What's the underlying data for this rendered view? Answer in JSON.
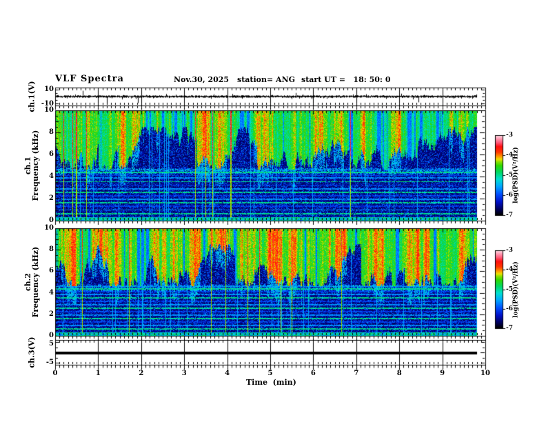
{
  "figure": {
    "title": "VLF Spectra",
    "date": "Nov.30, 2025",
    "station_label": "station= ANG",
    "start_ut_label": "start UT =   18: 50: 0"
  },
  "x_axis": {
    "label": "Time  (min)",
    "min": 0,
    "max": 10,
    "tick_values": [
      0,
      1,
      2,
      3,
      4,
      5,
      6,
      7,
      8,
      9,
      10
    ],
    "minor_tick_step_min": 0.1
  },
  "panels": {
    "ch1_wave": {
      "ylabel": "ch.1(V)",
      "ytick_top": "10",
      "ytick_bottom": "-10",
      "ymin": -10,
      "ymax": 10
    },
    "ch1_spec": {
      "ylabel_channel": "ch.1",
      "ylabel_axis": "Frequency (kHz)",
      "ytick_values": [
        0,
        2,
        4,
        6,
        8,
        10
      ],
      "ymin": 0,
      "ymax": 10
    },
    "ch2_spec": {
      "ylabel_channel": "ch.2",
      "ylabel_axis": "Frequency (kHz)",
      "ytick_values": [
        0,
        2,
        4,
        6,
        8,
        10
      ],
      "ymin": 0,
      "ymax": 10
    },
    "ch3_wave": {
      "ylabel": "ch.3(V)",
      "ytick_top": "5",
      "ytick_bottom": "-5",
      "ymin": -5,
      "ymax": 5
    }
  },
  "colorbar": {
    "label": "log(PSD)(V²/Hz)",
    "tick_labels": [
      "-3",
      "-4",
      "-5",
      "-6",
      "-7"
    ],
    "vmax": -3,
    "vmin": -7,
    "stops": [
      [
        0.0,
        "#000000"
      ],
      [
        0.06,
        "#000050"
      ],
      [
        0.16,
        "#0010c8"
      ],
      [
        0.26,
        "#0050ff"
      ],
      [
        0.36,
        "#00a8ff"
      ],
      [
        0.45,
        "#00e0d0"
      ],
      [
        0.54,
        "#00d860"
      ],
      [
        0.62,
        "#30d800"
      ],
      [
        0.67,
        "#90e000"
      ],
      [
        0.7,
        "#f0e000"
      ],
      [
        0.74,
        "#ff9000"
      ],
      [
        0.79,
        "#ff3800"
      ],
      [
        0.86,
        "#ff1010"
      ],
      [
        0.91,
        "#ff5878"
      ],
      [
        0.96,
        "#ff9cb4"
      ],
      [
        1.0,
        "#ffdce4"
      ]
    ]
  },
  "chart_data": [
    {
      "type": "line",
      "name": "ch.1 waveform",
      "xlim": [
        0,
        10
      ],
      "ylim": [
        -10,
        10
      ],
      "x_data_end_min": 9.8,
      "baseline_v": 0,
      "noise_amp_v": 1.5,
      "spikes": [
        {
          "t_min": 0.64,
          "v": 8
        },
        {
          "t_min": 1.2,
          "v": -10
        },
        {
          "t_min": 1.55,
          "v": -4
        },
        {
          "t_min": 1.92,
          "v": -9
        },
        {
          "t_min": 3.0,
          "v": 3
        },
        {
          "t_min": 4.35,
          "v": -3
        },
        {
          "t_min": 5.6,
          "v": 5
        },
        {
          "t_min": 8.05,
          "v": 4
        },
        {
          "t_min": 8.45,
          "v": -8
        },
        {
          "t_min": 9.7,
          "v": -3
        }
      ],
      "seed": 424242
    },
    {
      "type": "heatmap",
      "name": "ch.1 spectrogram",
      "xlim": [
        0,
        10
      ],
      "ylim": [
        0,
        10
      ],
      "zlim": [
        -7,
        -3
      ],
      "x_data_end_min": 9.8,
      "broadband_region_khz": [
        5,
        10
      ],
      "broadband_level_db": -4.72,
      "noise_floor_db": -6.8,
      "bottom_band_khz": [
        0,
        0.3
      ],
      "mid_band_khz": [
        4.2,
        4.78
      ],
      "line_freqs_khz": [
        0.62,
        0.95,
        1.28,
        1.6,
        1.93,
        2.26,
        2.58,
        2.9,
        3.22,
        3.55,
        3.88,
        4.12,
        4.38,
        4.62
      ],
      "line_levels_db": [
        -5.0,
        -5.65,
        -6.1
      ],
      "yellow_bias": 0,
      "seed": 12345
    },
    {
      "type": "heatmap",
      "name": "ch.2 spectrogram",
      "xlim": [
        0,
        10
      ],
      "ylim": [
        0,
        10
      ],
      "zlim": [
        -7,
        -3
      ],
      "x_data_end_min": 9.8,
      "broadband_region_khz": [
        5,
        10
      ],
      "broadband_level_db": -4.6,
      "noise_floor_db": -6.8,
      "bottom_band_khz": [
        0,
        0.3
      ],
      "mid_band_khz": [
        4.2,
        4.78
      ],
      "line_freqs_khz": [
        0.62,
        0.95,
        1.28,
        1.6,
        1.93,
        2.26,
        2.58,
        2.9,
        3.22,
        3.55,
        3.88,
        4.12,
        4.38,
        4.62
      ],
      "line_levels_db": [
        -5.0,
        -5.65,
        -6.1
      ],
      "yellow_bias": 0.12,
      "seed": 99173
    },
    {
      "type": "line",
      "name": "ch.3 waveform",
      "xlim": [
        0,
        10
      ],
      "ylim": [
        -5,
        5
      ],
      "x_data_end_min": 9.8,
      "constant_v": -0.3,
      "line_thickness_px": 4
    }
  ]
}
